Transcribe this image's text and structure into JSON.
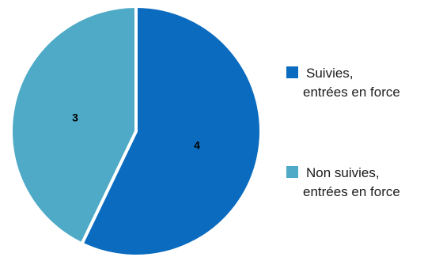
{
  "chart_data": {
    "type": "pie",
    "slices": [
      {
        "label_lines": [
          "Suivies,",
          "entrées en force"
        ],
        "value": 4,
        "color": "#0a6bbf"
      },
      {
        "label_lines": [
          "Non suivies,",
          "entrées en force"
        ],
        "value": 3,
        "color": "#4eaac6"
      }
    ],
    "data_labels": [
      "4",
      "3"
    ],
    "legend_position": "right"
  }
}
